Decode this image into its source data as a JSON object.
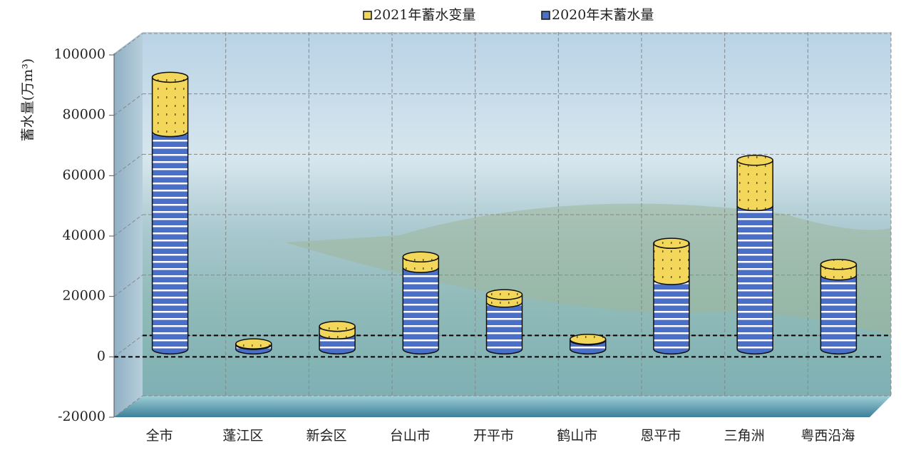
{
  "chart_data": {
    "type": "bar",
    "stacked": true,
    "three_d": true,
    "y_label": "蓄水量(万m³)",
    "categories": [
      "全市",
      "蓬江区",
      "新会区",
      "台山市",
      "开平市",
      "鹤山市",
      "恩平市",
      "三角洲",
      "粤西沿海"
    ],
    "series": [
      {
        "name": "2021年蓄水变量",
        "color": "#f2d75a",
        "values": [
          18000,
          200,
          2500,
          3500,
          2500,
          200,
          12000,
          15000,
          3500
        ]
      },
      {
        "name": "2020年末蓄水量",
        "color": "#4a6fc8",
        "values": [
          72000,
          1500,
          5000,
          27000,
          15500,
          3000,
          23000,
          47500,
          24500
        ]
      }
    ],
    "ylim": [
      -20000,
      100000
    ],
    "yticks": [
      -20000,
      0,
      20000,
      40000,
      60000,
      80000,
      100000
    ],
    "grid": true
  }
}
